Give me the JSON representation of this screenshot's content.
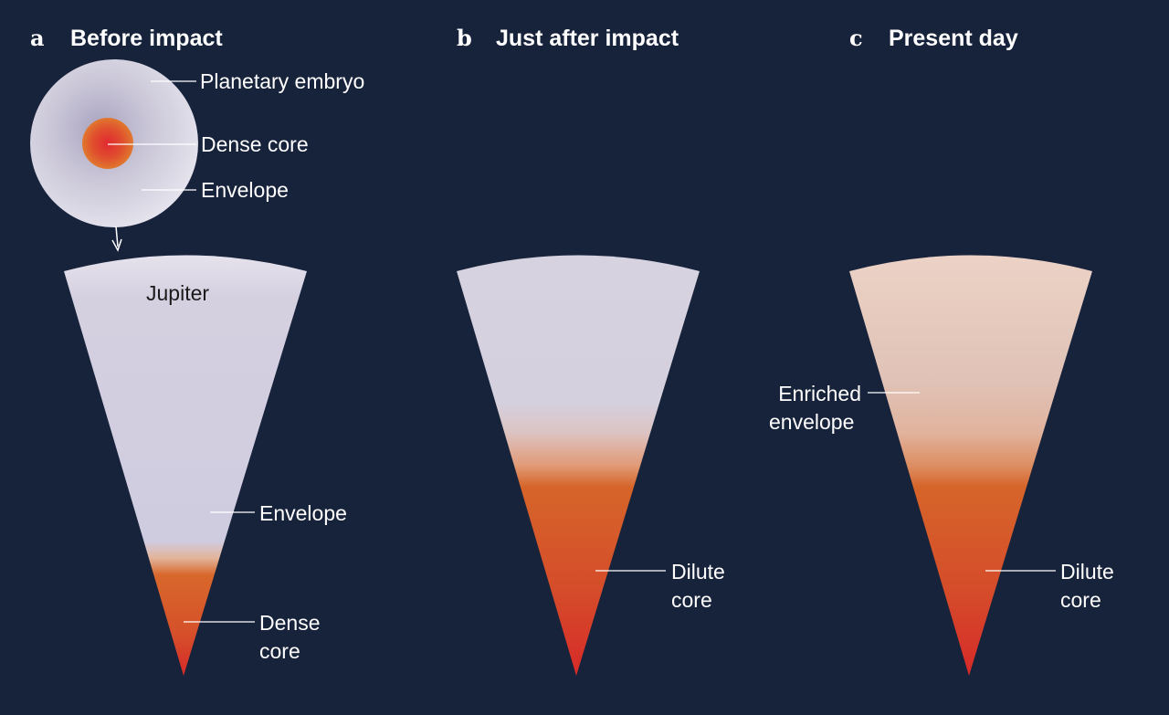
{
  "panels": [
    {
      "letter": "a",
      "title": "Before impact"
    },
    {
      "letter": "b",
      "title": "Just after impact"
    },
    {
      "letter": "c",
      "title": "Present day"
    }
  ],
  "embryo": {
    "name": "Planetary embryo",
    "core": "Dense core",
    "envelope": "Envelope"
  },
  "panel_a": {
    "planet": "Jupiter",
    "envelope": "Envelope",
    "core_line1": "Dense",
    "core_line2": "core"
  },
  "panel_b": {
    "core_line1": "Dilute",
    "core_line2": "core"
  },
  "panel_c": {
    "envelope_line1": "Enriched",
    "envelope_line2": "envelope",
    "core_line1": "Dilute",
    "core_line2": "core"
  },
  "colors": {
    "background": "#17223b",
    "envelope": "#d6d2e0",
    "enriched_envelope": "#e0c4b8",
    "core_orange": "#d7652a",
    "core_red": "#d62a28"
  }
}
